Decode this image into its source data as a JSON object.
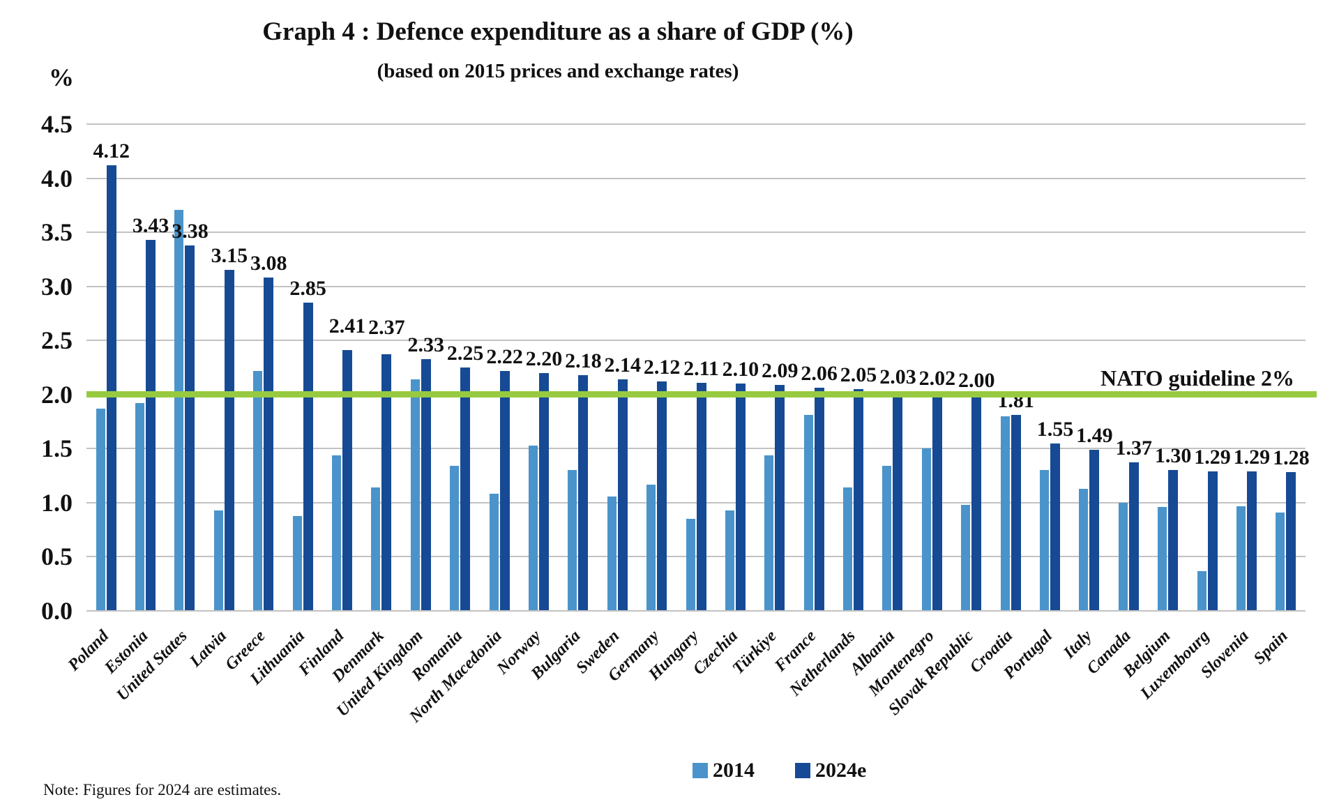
{
  "title": "Graph 4 : Defence expenditure as a share of GDP (%)",
  "subtitle": "(based on 2015 prices and exchange rates)",
  "y_axis_label": "%",
  "note": "Note: Figures for 2024 are estimates.",
  "legend": [
    {
      "label": "2014",
      "color": "#4A94CB"
    },
    {
      "label": "2024e",
      "color": "#174A94"
    }
  ],
  "colors": {
    "bar_2014": "#4A94CB",
    "bar_2024e": "#174A94",
    "guideline_green": "#97CA40",
    "gridline_gray": "#C2C2C2",
    "text": "#111111"
  },
  "chart_data": {
    "type": "bar",
    "title": "Graph 4 : Defence expenditure as a share of GDP (%)",
    "subtitle": "(based on 2015 prices and exchange rates)",
    "ylabel": "%",
    "ylim": [
      0,
      4.5
    ],
    "ytick_step": 0.5,
    "grid": true,
    "legend_position": "bottom",
    "categories": [
      "Poland",
      "Estonia",
      "United States",
      "Latvia",
      "Greece",
      "Lithuania",
      "Finland",
      "Denmark",
      "United Kingdom",
      "Romania",
      "North Macedonia",
      "Norway",
      "Bulgaria",
      "Sweden",
      "Germany",
      "Hungary",
      "Czechia",
      "Türkiye",
      "France",
      "Netherlands",
      "Albania",
      "Montenegro",
      "Slovak Republic",
      "Croatia",
      "Portugal",
      "Italy",
      "Canada",
      "Belgium",
      "Luxembourg",
      "Slovenia",
      "Spain"
    ],
    "series": [
      {
        "name": "2014",
        "color": "#4A94CB",
        "values": [
          1.87,
          1.92,
          3.71,
          0.93,
          2.22,
          0.88,
          1.44,
          1.14,
          2.14,
          1.34,
          1.08,
          1.53,
          1.3,
          1.06,
          1.17,
          0.85,
          0.93,
          1.44,
          1.81,
          1.14,
          1.34,
          1.5,
          0.98,
          1.8,
          1.3,
          1.13,
          1.0,
          0.96,
          0.37,
          0.97,
          0.91
        ]
      },
      {
        "name": "2024e",
        "color": "#174A94",
        "data_labels": true,
        "values": [
          4.12,
          3.43,
          3.38,
          3.15,
          3.08,
          2.85,
          2.41,
          2.37,
          2.33,
          2.25,
          2.22,
          2.2,
          2.18,
          2.14,
          2.12,
          2.11,
          2.1,
          2.09,
          2.06,
          2.05,
          2.03,
          2.02,
          2.0,
          1.81,
          1.55,
          1.49,
          1.37,
          1.3,
          1.29,
          1.29,
          1.28
        ]
      }
    ],
    "value_label_format": "0.00",
    "label_extra_raise": {
      "6": 14,
      "7": 18
    },
    "guideline": {
      "value": 2.0,
      "label": "NATO guideline 2%",
      "color": "#97CA40"
    }
  }
}
